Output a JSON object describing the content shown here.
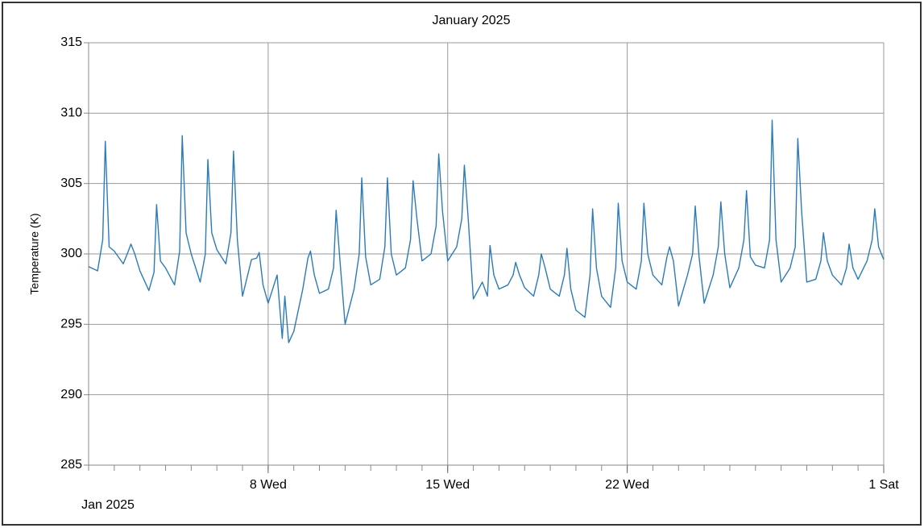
{
  "chart_data": {
    "type": "line",
    "title": "January 2025",
    "ylabel": "Temperature (K)",
    "x_period_label": "Jan 2025",
    "color": "#2b7bb9",
    "grid": true,
    "ylim": [
      285,
      315
    ],
    "yticks": [
      285,
      290,
      295,
      300,
      305,
      310,
      315
    ],
    "xlim": [
      1,
      32
    ],
    "xticks": [
      {
        "value": 8,
        "label": "8 Wed"
      },
      {
        "value": 15,
        "label": "15 Wed"
      },
      {
        "value": 22,
        "label": "22 Wed"
      },
      {
        "value": 32,
        "label": "1 Sat"
      }
    ],
    "x_minor_ticks": [
      1,
      2,
      3,
      4,
      5,
      6,
      7,
      8,
      9,
      10,
      11,
      12,
      13,
      14,
      15,
      16,
      17,
      18,
      19,
      20,
      21,
      22,
      23,
      24,
      25,
      26,
      27,
      28,
      29,
      30,
      31,
      32
    ],
    "x": [
      1,
      1.35,
      1.55,
      1.65,
      1.8,
      2,
      2.35,
      2.55,
      2.65,
      2.8,
      3,
      3.35,
      3.55,
      3.65,
      3.8,
      4,
      4.35,
      4.55,
      4.65,
      4.8,
      5,
      5.35,
      5.55,
      5.65,
      5.8,
      6,
      6.35,
      6.55,
      6.65,
      6.8,
      7,
      7.35,
      7.55,
      7.65,
      7.8,
      8,
      8.35,
      8.55,
      8.65,
      8.8,
      9,
      9.35,
      9.55,
      9.65,
      9.8,
      10,
      10.35,
      10.55,
      10.65,
      10.8,
      11,
      11.35,
      11.55,
      11.65,
      11.8,
      12,
      12.35,
      12.55,
      12.65,
      12.8,
      13,
      13.35,
      13.55,
      13.65,
      13.8,
      14,
      14.35,
      14.55,
      14.65,
      14.8,
      15,
      15.35,
      15.55,
      15.65,
      15.8,
      16,
      16.35,
      16.55,
      16.65,
      16.8,
      17,
      17.35,
      17.55,
      17.65,
      17.8,
      18,
      18.35,
      18.55,
      18.65,
      18.8,
      19,
      19.35,
      19.55,
      19.65,
      19.8,
      20,
      20.35,
      20.55,
      20.65,
      20.8,
      21,
      21.35,
      21.55,
      21.65,
      21.8,
      22,
      22.35,
      22.55,
      22.65,
      22.8,
      23,
      23.35,
      23.55,
      23.65,
      23.8,
      24,
      24.35,
      24.55,
      24.65,
      24.8,
      25,
      25.35,
      25.55,
      25.65,
      25.8,
      26,
      26.35,
      26.55,
      26.65,
      26.8,
      27,
      27.35,
      27.55,
      27.65,
      27.8,
      28,
      28.35,
      28.55,
      28.65,
      28.8,
      29,
      29.35,
      29.55,
      29.65,
      29.8,
      30,
      30.35,
      30.55,
      30.65,
      30.8,
      31,
      31.35,
      31.55,
      31.65,
      31.8,
      32
    ],
    "values": [
      299.1,
      298.8,
      301,
      308,
      300.5,
      300.2,
      299.3,
      300.2,
      300.7,
      300,
      298.8,
      297.4,
      298.7,
      303.5,
      299.5,
      299,
      297.8,
      300.2,
      308.4,
      301.5,
      300,
      298,
      300,
      306.7,
      301.5,
      300.3,
      299.3,
      301.5,
      307.3,
      301,
      297,
      299.6,
      299.7,
      300.1,
      297.8,
      296.5,
      298.5,
      294,
      297,
      293.7,
      294.5,
      297.5,
      299.7,
      300.2,
      298.5,
      297.2,
      297.5,
      299,
      303.1,
      299.5,
      295,
      297.5,
      300,
      305.4,
      299.8,
      297.8,
      298.2,
      300.5,
      305.4,
      300,
      298.5,
      299,
      301,
      305.2,
      302.5,
      299.5,
      300,
      302,
      307.1,
      303,
      299.5,
      300.5,
      302.5,
      306.3,
      302.5,
      296.8,
      298,
      297,
      300.6,
      298.5,
      297.5,
      297.8,
      298.5,
      299.4,
      298.5,
      297.6,
      297,
      298.5,
      300,
      299,
      297.5,
      297,
      298.5,
      300.4,
      297.5,
      296,
      295.5,
      298.5,
      303.2,
      299,
      297,
      296.2,
      299,
      303.6,
      299.5,
      298,
      297.5,
      299.5,
      303.6,
      300,
      298.5,
      297.8,
      299.8,
      300.5,
      299.5,
      296.3,
      298.5,
      300,
      303.4,
      299.8,
      296.5,
      298.5,
      300.5,
      303.7,
      300,
      297.6,
      299,
      301,
      304.5,
      299.8,
      299.2,
      299,
      301,
      309.5,
      301,
      298,
      299,
      300.5,
      308.2,
      303,
      298,
      298.2,
      299.5,
      301.5,
      299.5,
      298.5,
      297.8,
      299,
      300.7,
      299,
      298.2,
      299.5,
      301,
      303.2,
      300.5,
      299.6
    ]
  }
}
